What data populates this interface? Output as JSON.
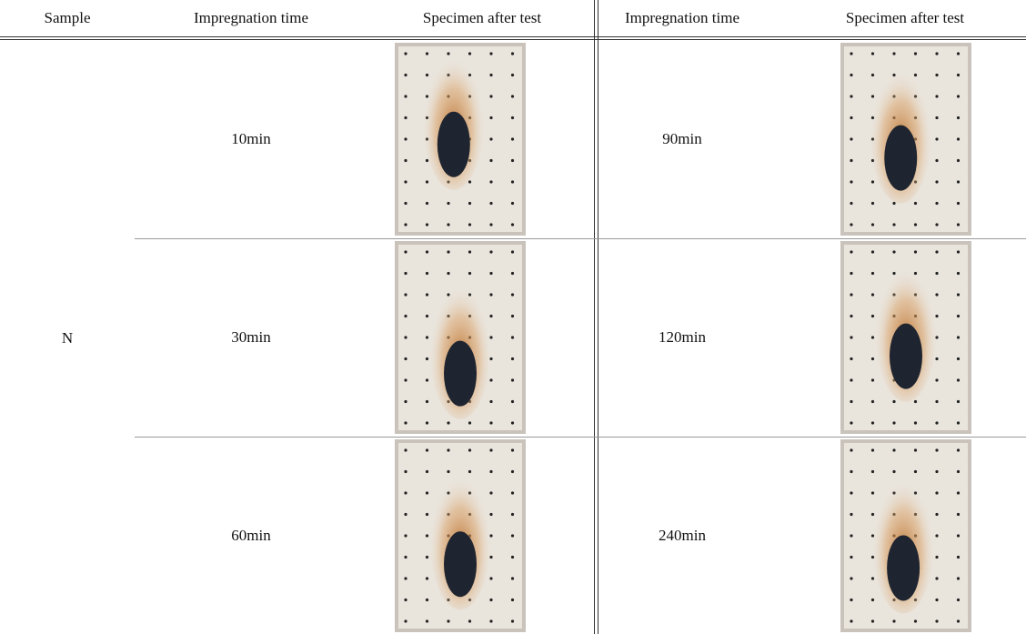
{
  "table": {
    "header": [
      "Sample",
      "Impregnation time",
      "Specimen after test",
      "Impregnation time",
      "Specimen after test"
    ],
    "sample": "N",
    "rows": [
      [
        "10min",
        "90min"
      ],
      [
        "30min",
        "120min"
      ],
      [
        "60min",
        "240min"
      ]
    ]
  }
}
